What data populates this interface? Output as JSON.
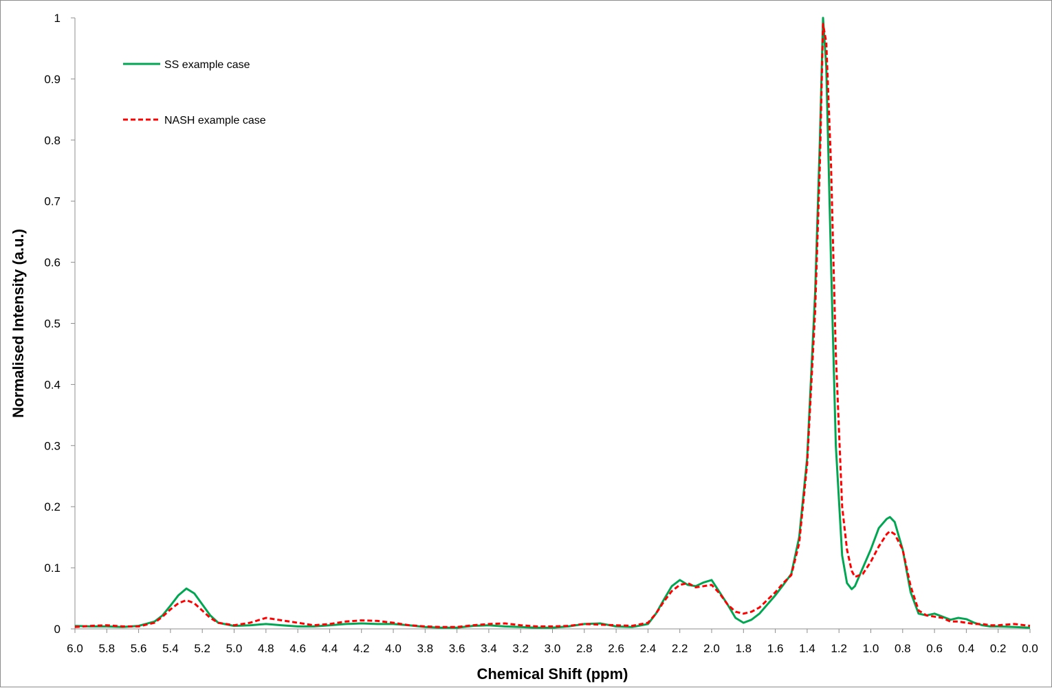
{
  "chart_data": {
    "type": "line",
    "title": "",
    "xlabel": "Chemical Shift (ppm)",
    "ylabel": "Normalised Intensity (a.u.)",
    "xlim": [
      6.0,
      0.0
    ],
    "x_reversed": true,
    "ylim": [
      0,
      1
    ],
    "grid": false,
    "legend_position": "top-left",
    "x_ticks": [
      "6.0",
      "5.8",
      "5.6",
      "5.4",
      "5.2",
      "5.0",
      "4.8",
      "4.6",
      "4.4",
      "4.2",
      "4.0",
      "3.8",
      "3.6",
      "3.4",
      "3.2",
      "3.0",
      "2.8",
      "2.6",
      "2.4",
      "2.2",
      "2.0",
      "1.8",
      "1.6",
      "1.4",
      "1.2",
      "1.0",
      "0.8",
      "0.6",
      "0.4",
      "0.2",
      "0.0"
    ],
    "y_ticks": [
      "0",
      "0.1",
      "0.2",
      "0.3",
      "0.4",
      "0.5",
      "0.6",
      "0.7",
      "0.8",
      "0.9",
      "1"
    ],
    "series": [
      {
        "name": "SS example case",
        "color": "#00a651",
        "style": "solid",
        "x": [
          6.0,
          5.9,
          5.8,
          5.7,
          5.6,
          5.5,
          5.45,
          5.4,
          5.35,
          5.3,
          5.25,
          5.2,
          5.15,
          5.1,
          5.0,
          4.9,
          4.8,
          4.7,
          4.6,
          4.5,
          4.4,
          4.3,
          4.2,
          4.1,
          4.0,
          3.9,
          3.8,
          3.7,
          3.6,
          3.5,
          3.4,
          3.3,
          3.2,
          3.1,
          3.0,
          2.9,
          2.8,
          2.7,
          2.6,
          2.5,
          2.4,
          2.35,
          2.3,
          2.25,
          2.2,
          2.15,
          2.1,
          2.05,
          2.0,
          1.95,
          1.9,
          1.85,
          1.8,
          1.75,
          1.7,
          1.6,
          1.55,
          1.5,
          1.45,
          1.4,
          1.35,
          1.32,
          1.3,
          1.28,
          1.25,
          1.22,
          1.18,
          1.15,
          1.12,
          1.1,
          1.05,
          1.0,
          0.95,
          0.9,
          0.88,
          0.85,
          0.8,
          0.75,
          0.7,
          0.65,
          0.6,
          0.55,
          0.5,
          0.45,
          0.4,
          0.35,
          0.3,
          0.25,
          0.2,
          0.1,
          0.0
        ],
        "y": [
          0.005,
          0.004,
          0.004,
          0.003,
          0.005,
          0.012,
          0.022,
          0.038,
          0.055,
          0.066,
          0.058,
          0.04,
          0.022,
          0.01,
          0.005,
          0.006,
          0.008,
          0.006,
          0.004,
          0.004,
          0.006,
          0.008,
          0.009,
          0.008,
          0.008,
          0.006,
          0.003,
          0.002,
          0.002,
          0.005,
          0.006,
          0.004,
          0.003,
          0.002,
          0.002,
          0.004,
          0.008,
          0.009,
          0.004,
          0.003,
          0.008,
          0.025,
          0.048,
          0.07,
          0.08,
          0.072,
          0.07,
          0.076,
          0.08,
          0.06,
          0.04,
          0.018,
          0.01,
          0.015,
          0.025,
          0.055,
          0.072,
          0.09,
          0.15,
          0.28,
          0.55,
          0.8,
          1.0,
          0.92,
          0.6,
          0.3,
          0.12,
          0.075,
          0.065,
          0.07,
          0.1,
          0.13,
          0.165,
          0.18,
          0.183,
          0.175,
          0.13,
          0.06,
          0.025,
          0.022,
          0.025,
          0.02,
          0.015,
          0.018,
          0.016,
          0.01,
          0.006,
          0.004,
          0.004,
          0.003,
          0.002
        ]
      },
      {
        "name": "NASH example case",
        "color": "#ff0000",
        "style": "dashed",
        "x": [
          6.0,
          5.9,
          5.8,
          5.7,
          5.6,
          5.5,
          5.45,
          5.4,
          5.35,
          5.3,
          5.25,
          5.2,
          5.15,
          5.1,
          5.0,
          4.9,
          4.8,
          4.7,
          4.6,
          4.5,
          4.4,
          4.3,
          4.2,
          4.1,
          4.0,
          3.9,
          3.8,
          3.7,
          3.6,
          3.5,
          3.4,
          3.3,
          3.2,
          3.1,
          3.0,
          2.9,
          2.8,
          2.7,
          2.6,
          2.5,
          2.4,
          2.35,
          2.3,
          2.25,
          2.2,
          2.15,
          2.1,
          2.05,
          2.0,
          1.95,
          1.9,
          1.85,
          1.8,
          1.75,
          1.7,
          1.6,
          1.55,
          1.5,
          1.45,
          1.4,
          1.35,
          1.32,
          1.3,
          1.28,
          1.25,
          1.22,
          1.18,
          1.15,
          1.12,
          1.1,
          1.05,
          1.0,
          0.95,
          0.9,
          0.88,
          0.85,
          0.8,
          0.75,
          0.7,
          0.65,
          0.6,
          0.55,
          0.5,
          0.45,
          0.4,
          0.35,
          0.3,
          0.25,
          0.2,
          0.1,
          0.0
        ],
        "y": [
          0.003,
          0.005,
          0.006,
          0.004,
          0.004,
          0.01,
          0.02,
          0.032,
          0.042,
          0.047,
          0.042,
          0.03,
          0.018,
          0.01,
          0.006,
          0.01,
          0.018,
          0.014,
          0.01,
          0.006,
          0.008,
          0.012,
          0.014,
          0.013,
          0.01,
          0.006,
          0.004,
          0.003,
          0.003,
          0.006,
          0.008,
          0.009,
          0.006,
          0.004,
          0.004,
          0.005,
          0.008,
          0.007,
          0.006,
          0.005,
          0.01,
          0.025,
          0.045,
          0.062,
          0.072,
          0.075,
          0.068,
          0.07,
          0.072,
          0.058,
          0.04,
          0.028,
          0.025,
          0.028,
          0.035,
          0.06,
          0.075,
          0.088,
          0.14,
          0.27,
          0.52,
          0.76,
          0.99,
          0.96,
          0.76,
          0.45,
          0.2,
          0.13,
          0.095,
          0.085,
          0.09,
          0.11,
          0.135,
          0.155,
          0.16,
          0.155,
          0.13,
          0.07,
          0.03,
          0.022,
          0.02,
          0.018,
          0.012,
          0.012,
          0.01,
          0.008,
          0.008,
          0.006,
          0.006,
          0.008,
          0.005
        ]
      }
    ]
  }
}
